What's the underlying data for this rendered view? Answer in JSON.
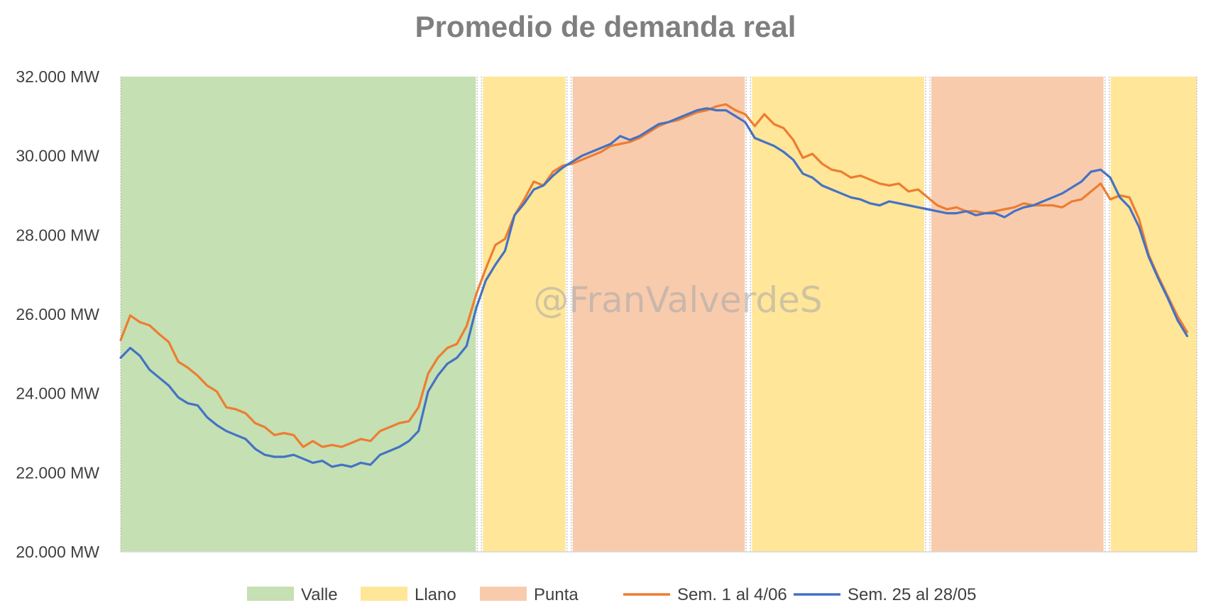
{
  "chart_data": {
    "type": "line",
    "title": "Promedio de demanda real",
    "watermark": "@FranValverdeS",
    "y_axis": {
      "min": 20000,
      "max": 32000,
      "ticks": [
        {
          "value": 32000,
          "label": "32.000 MW"
        },
        {
          "value": 30000,
          "label": "30.000 MW"
        },
        {
          "value": 28000,
          "label": "28.000 MW"
        },
        {
          "value": 26000,
          "label": "26.000 MW"
        },
        {
          "value": 24000,
          "label": "24.000 MW"
        },
        {
          "value": 22000,
          "label": "22.000 MW"
        },
        {
          "value": 20000,
          "label": "20.000 MW"
        }
      ]
    },
    "x_axis": {
      "count": 96,
      "labels": []
    },
    "bands": [
      {
        "name": "Valle",
        "start": 0,
        "end": 32,
        "color": "#c5e0b3"
      },
      {
        "name": "Llano",
        "start": 32,
        "end": 40,
        "color": "#ffe699"
      },
      {
        "name": "Punta",
        "start": 40,
        "end": 56,
        "color": "#f8cbad"
      },
      {
        "name": "Llano",
        "start": 56,
        "end": 72,
        "color": "#ffe699"
      },
      {
        "name": "Punta",
        "start": 72,
        "end": 88,
        "color": "#f8cbad"
      },
      {
        "name": "Llano",
        "start": 88,
        "end": 96,
        "color": "#ffe699"
      }
    ],
    "series": [
      {
        "name": "Sem. 1 al 4/06",
        "color": "#ed7d31",
        "values": [
          25350,
          25970,
          25800,
          25720,
          25500,
          25300,
          24800,
          24650,
          24450,
          24200,
          24050,
          23650,
          23600,
          23500,
          23250,
          23150,
          22950,
          23000,
          22950,
          22650,
          22800,
          22650,
          22700,
          22650,
          22750,
          22850,
          22800,
          23050,
          23150,
          23250,
          23300,
          23650,
          24500,
          24900,
          25150,
          25250,
          25700,
          26500,
          27150,
          27750,
          27900,
          28500,
          28900,
          29350,
          29250,
          29600,
          29750,
          29800,
          29900,
          30000,
          30100,
          30250,
          30300,
          30350,
          30450,
          30600,
          30750,
          30850,
          30900,
          31000,
          31100,
          31150,
          31250,
          31300,
          31150,
          31050,
          30750,
          31050,
          30800,
          30700,
          30400,
          29950,
          30050,
          29800,
          29650,
          29600,
          29450,
          29500,
          29400,
          29300,
          29250,
          29300,
          29100,
          29150,
          28950,
          28750,
          28650,
          28700,
          28600,
          28600,
          28550,
          28600,
          28650,
          28700,
          28800,
          28750,
          28750,
          28750,
          28700,
          28850,
          28900,
          29100,
          29300,
          28900,
          29000,
          28950,
          28400,
          27500,
          26950,
          26450,
          25950,
          25550
        ],
        "x_start": 0,
        "x_step": 0.8571
      },
      {
        "name": "Sem. 25 al 28/05",
        "color": "#4472c4",
        "values": [
          24900,
          25150,
          24950,
          24600,
          24400,
          24200,
          23900,
          23750,
          23700,
          23400,
          23200,
          23050,
          22950,
          22850,
          22600,
          22450,
          22400,
          22400,
          22450,
          22350,
          22250,
          22300,
          22150,
          22200,
          22150,
          22250,
          22200,
          22450,
          22550,
          22650,
          22800,
          23050,
          24050,
          24450,
          24750,
          24900,
          25200,
          26150,
          26850,
          27250,
          27600,
          28500,
          28800,
          29150,
          29250,
          29500,
          29700,
          29850,
          30000,
          30100,
          30200,
          30300,
          30500,
          30400,
          30500,
          30650,
          30800,
          30850,
          30950,
          31050,
          31150,
          31200,
          31150,
          31150,
          31000,
          30850,
          30450,
          30350,
          30250,
          30100,
          29900,
          29550,
          29450,
          29250,
          29150,
          29050,
          28950,
          28900,
          28800,
          28750,
          28850,
          28800,
          28750,
          28700,
          28650,
          28600,
          28550,
          28550,
          28600,
          28500,
          28550,
          28550,
          28450,
          28600,
          28700,
          28750,
          28850,
          28950,
          29050,
          29200,
          29350,
          29600,
          29650,
          29450,
          28950,
          28700,
          28200,
          27450,
          26900,
          26400,
          25850,
          25450
        ],
        "x_start": 0,
        "x_step": 0.8571
      }
    ],
    "legend": {
      "position": "bottom",
      "items": [
        {
          "label": "Valle",
          "kind": "box",
          "color": "#c5e0b3"
        },
        {
          "label": "Llano",
          "kind": "box",
          "color": "#ffe699"
        },
        {
          "label": "Punta",
          "kind": "box",
          "color": "#f8cbad"
        },
        {
          "label": "Sem. 1 al 4/06",
          "kind": "line",
          "color": "#ed7d31"
        },
        {
          "label": "Sem. 25 al 28/05",
          "kind": "line",
          "color": "#4472c4"
        }
      ]
    }
  }
}
